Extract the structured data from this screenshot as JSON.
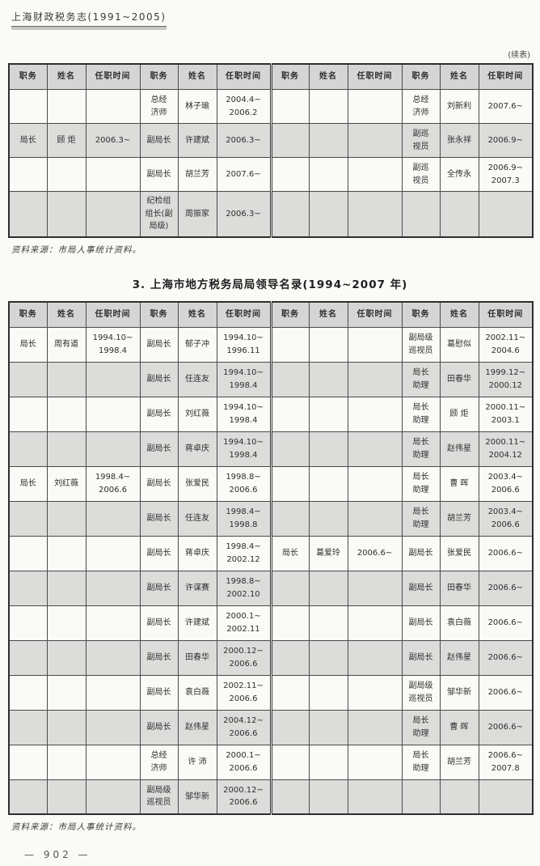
{
  "document": {
    "book_header": "上海财政税务志(1991~2005)",
    "continued_note": "(续表)",
    "section_title": "3.  上海市地方税务局局领导名录(1994~2007 年)",
    "source_note": "资料来源：市局人事统计资料。",
    "page_number": "—  902  —"
  },
  "tables": {
    "table1": {
      "headers": [
        "职务",
        "姓名",
        "任职时间",
        "职务",
        "姓名",
        "任职时间",
        "职务",
        "姓名",
        "任职时间",
        "职务",
        "姓名",
        "任职时间"
      ],
      "rows": [
        [
          "",
          "",
          "",
          "总经\n济师",
          "林子瑜",
          "2004.4~\n2006.2",
          "",
          "",
          "",
          "总经\n济师",
          "刘新利",
          "2007.6~"
        ],
        [
          "局长",
          "顾  炬",
          "2006.3~",
          "副局长",
          "许建斌",
          "2006.3~",
          "",
          "",
          "",
          "副巡\n视员",
          "张永祥",
          "2006.9~"
        ],
        [
          "",
          "",
          "",
          "副局长",
          "胡兰芳",
          "2007.6~",
          "",
          "",
          "",
          "副巡\n视员",
          "全传永",
          "2006.9~\n2007.3"
        ],
        [
          "",
          "",
          "",
          "纪检组\n组长(副\n局级)",
          "周振家",
          "2006.3~",
          "",
          "",
          "",
          "",
          "",
          ""
        ]
      ]
    },
    "table2": {
      "headers": [
        "职务",
        "姓名",
        "任职时间",
        "职务",
        "姓名",
        "任职时间",
        "职务",
        "姓名",
        "任职时间",
        "职务",
        "姓名",
        "任职时间"
      ],
      "rows": [
        [
          "局长",
          "周有道",
          "1994.10~\n1998.4",
          "副局长",
          "郁子冲",
          "1994.10~\n1996.11",
          "",
          "",
          "",
          "副局级\n巡视员",
          "葛慰似",
          "2002.11~\n2004.6"
        ],
        [
          "",
          "",
          "",
          "副局长",
          "任连友",
          "1994.10~\n1998.4",
          "",
          "",
          "",
          "局长\n助理",
          "田春华",
          "1999.12~\n2000.12"
        ],
        [
          "",
          "",
          "",
          "副局长",
          "刘红薇",
          "1994.10~\n1998.4",
          "",
          "",
          "",
          "局长\n助理",
          "顾  炬",
          "2000.11~\n2003.1"
        ],
        [
          "",
          "",
          "",
          "副局长",
          "蒋卓庆",
          "1994.10~\n1998.4",
          "",
          "",
          "",
          "局长\n助理",
          "赵伟星",
          "2000.11~\n2004.12"
        ],
        [
          "局长",
          "刘红薇",
          "1998.4~\n2006.6",
          "副局长",
          "张爱民",
          "1998.8~\n2006.6",
          "",
          "",
          "",
          "局长\n助理",
          "曹  晖",
          "2003.4~\n2006.6"
        ],
        [
          "",
          "",
          "",
          "副局长",
          "任连友",
          "1998.4~\n1998.8",
          "",
          "",
          "",
          "局长\n助理",
          "胡兰芳",
          "2003.4~\n2006.6"
        ],
        [
          "",
          "",
          "",
          "副局长",
          "蒋卓庆",
          "1998.4~\n2002.12",
          "局长",
          "葛爱玲",
          "2006.6~",
          "副局长",
          "张爱民",
          "2006.6~"
        ],
        [
          "",
          "",
          "",
          "副局长",
          "许谋赛",
          "1998.8~\n2002.10",
          "",
          "",
          "",
          "副局长",
          "田春华",
          "2006.6~"
        ],
        [
          "",
          "",
          "",
          "副局长",
          "许建斌",
          "2000.1~\n2002.11",
          "",
          "",
          "",
          "副局长",
          "袁白薇",
          "2006.6~"
        ],
        [
          "",
          "",
          "",
          "副局长",
          "田春华",
          "2000.12~\n2006.6",
          "",
          "",
          "",
          "副局长",
          "赵伟星",
          "2006.6~"
        ],
        [
          "",
          "",
          "",
          "副局长",
          "袁白薇",
          "2002.11~\n2006.6",
          "",
          "",
          "",
          "副局级\n巡视员",
          "邹华新",
          "2006.6~"
        ],
        [
          "",
          "",
          "",
          "副局长",
          "赵伟星",
          "2004.12~\n2006.6",
          "",
          "",
          "",
          "局长\n助理",
          "曹  晖",
          "2006.6~"
        ],
        [
          "",
          "",
          "",
          "总经\n济师",
          "许  沛",
          "2000.1~\n2006.6",
          "",
          "",
          "",
          "局长\n助理",
          "胡兰芳",
          "2006.6~\n2007.8"
        ],
        [
          "",
          "",
          "",
          "副局级\n巡视员",
          "邹华新",
          "2000.12~\n2006.6",
          "",
          "",
          "",
          "",
          "",
          ""
        ]
      ]
    }
  }
}
